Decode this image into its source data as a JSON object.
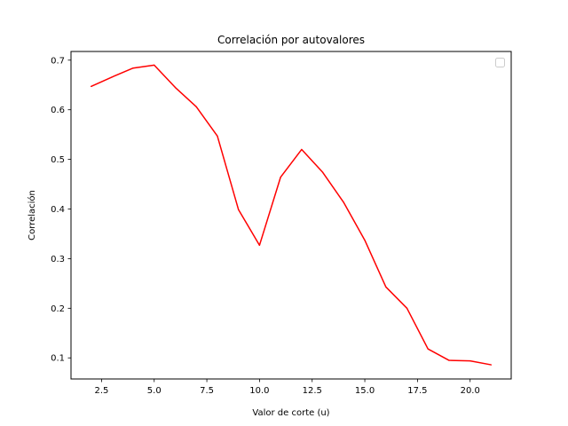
{
  "chart_data": {
    "type": "line",
    "title": "Correlación por autovalores",
    "xlabel": "Valor de corte (u)",
    "ylabel": "Correlación",
    "xlim": [
      1.05,
      21.95
    ],
    "ylim": [
      0.0575,
      0.7175
    ],
    "xticks": [
      2.5,
      5.0,
      7.5,
      10.0,
      12.5,
      15.0,
      17.5,
      20.0
    ],
    "xtick_labels": [
      "2.5",
      "5.0",
      "7.5",
      "10.0",
      "12.5",
      "15.0",
      "17.5",
      "20.0"
    ],
    "yticks": [
      0.1,
      0.2,
      0.3,
      0.4,
      0.5,
      0.6,
      0.7
    ],
    "ytick_labels": [
      "0.1",
      "0.2",
      "0.3",
      "0.4",
      "0.5",
      "0.6",
      "0.7"
    ],
    "grid": false,
    "legend": "top-right (empty)",
    "series": [
      {
        "color": "#ff0000",
        "x": [
          2,
          3,
          4,
          5,
          6,
          7,
          8,
          9,
          10,
          11,
          12,
          13,
          14,
          15,
          16,
          17,
          18,
          19,
          20,
          21
        ],
        "y": [
          0.647,
          0.666,
          0.684,
          0.69,
          0.645,
          0.606,
          0.547,
          0.399,
          0.327,
          0.464,
          0.52,
          0.474,
          0.413,
          0.337,
          0.243,
          0.2,
          0.118,
          0.095,
          0.094,
          0.086
        ]
      }
    ]
  }
}
